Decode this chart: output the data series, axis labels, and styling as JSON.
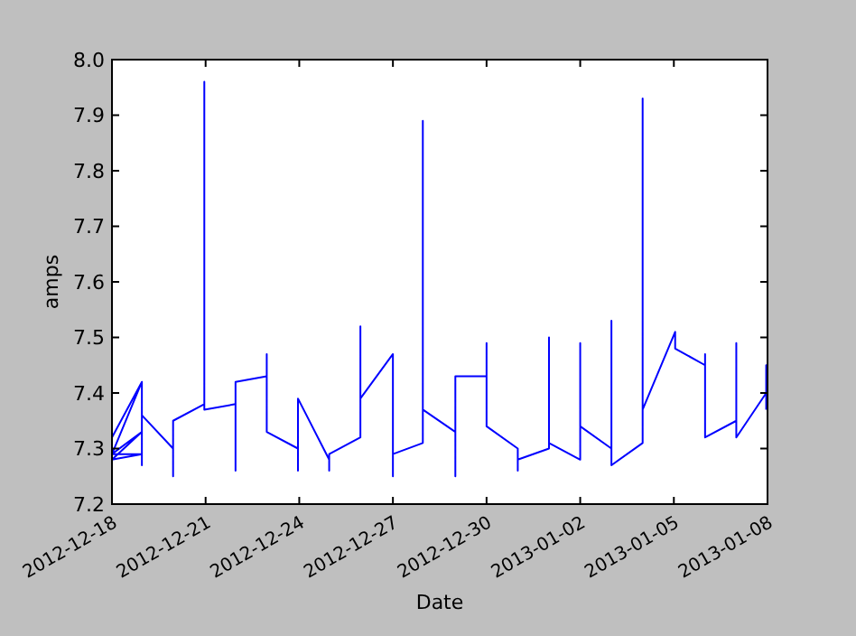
{
  "chart_data": {
    "type": "line",
    "xlabel": "Date",
    "ylabel": "amps",
    "x": [
      "2012-12-18T00:00",
      "2012-12-18T23:00",
      "2012-12-18T00:00",
      "2012-12-18T23:00",
      "2012-12-18T00:00",
      "2012-12-18T23:00",
      "2012-12-18T00:00",
      "2012-12-18T23:00",
      "2012-12-18T23:00",
      "2012-12-18T23:00",
      "2012-12-19T23:00",
      "2012-12-19T23:00",
      "2012-12-19T23:00",
      "2012-12-20T23:00",
      "2012-12-20T23:00",
      "2012-12-20T23:00",
      "2012-12-21T23:00",
      "2012-12-21T23:00",
      "2012-12-21T23:00",
      "2012-12-22T23:00",
      "2012-12-22T23:00",
      "2012-12-22T23:00",
      "2012-12-23T23:00",
      "2012-12-23T23:00",
      "2012-12-23T23:00",
      "2012-12-24T23:00",
      "2012-12-24T23:00",
      "2012-12-24T23:00",
      "2012-12-25T23:00",
      "2012-12-25T23:00",
      "2012-12-25T23:00",
      "2012-12-27T00:00",
      "2012-12-27T00:00",
      "2012-12-27T00:00",
      "2012-12-27T23:00",
      "2012-12-27T23:00",
      "2012-12-27T23:00",
      "2012-12-29T00:00",
      "2012-12-29T00:00",
      "2012-12-29T00:00",
      "2012-12-30T00:00",
      "2012-12-30T00:00",
      "2012-12-30T00:00",
      "2012-12-31T00:00",
      "2012-12-31T00:00",
      "2012-12-31T00:00",
      "2013-01-01T00:00",
      "2013-01-01T00:00",
      "2013-01-01T00:00",
      "2013-01-02T00:00",
      "2013-01-02T00:00",
      "2013-01-02T00:00",
      "2013-01-03T00:00",
      "2013-01-03T00:00",
      "2013-01-03T00:00",
      "2013-01-04T00:00",
      "2013-01-04T00:00",
      "2013-01-04T00:00",
      "2013-01-05T01:00",
      "2013-01-05T01:00",
      "2013-01-06T00:00",
      "2013-01-06T00:00",
      "2013-01-06T00:00",
      "2013-01-07T00:00",
      "2013-01-07T00:00",
      "2013-01-07T00:00",
      "2013-01-07T23:00",
      "2013-01-07T23:00",
      "2013-01-07T23:00"
    ],
    "series": [
      {
        "color": "#0000ff",
        "values": [
          7.32,
          7.42,
          7.29,
          7.33,
          7.28,
          7.29,
          7.29,
          7.42,
          7.27,
          7.36,
          7.3,
          7.25,
          7.35,
          7.38,
          7.96,
          7.37,
          7.38,
          7.26,
          7.42,
          7.43,
          7.47,
          7.33,
          7.3,
          7.26,
          7.39,
          7.28,
          7.26,
          7.29,
          7.32,
          7.52,
          7.39,
          7.47,
          7.25,
          7.29,
          7.31,
          7.89,
          7.37,
          7.33,
          7.25,
          7.43,
          7.43,
          7.49,
          7.34,
          7.3,
          7.26,
          7.28,
          7.3,
          7.5,
          7.31,
          7.28,
          7.49,
          7.34,
          7.3,
          7.53,
          7.27,
          7.31,
          7.93,
          7.37,
          7.51,
          7.48,
          7.45,
          7.47,
          7.32,
          7.35,
          7.49,
          7.32,
          7.4,
          7.45,
          7.37
        ]
      }
    ],
    "xlim": [
      "2012-12-18",
      "2013-01-08"
    ],
    "xticks": [
      {
        "value": "2012-12-18",
        "label": "2012-12-18"
      },
      {
        "value": "2012-12-21",
        "label": "2012-12-21"
      },
      {
        "value": "2012-12-24",
        "label": "2012-12-24"
      },
      {
        "value": "2012-12-27",
        "label": "2012-12-27"
      },
      {
        "value": "2012-12-30",
        "label": "2012-12-30"
      },
      {
        "value": "2013-01-02",
        "label": "2013-01-02"
      },
      {
        "value": "2013-01-05",
        "label": "2013-01-05"
      },
      {
        "value": "2013-01-08",
        "label": "2013-01-08"
      }
    ],
    "ylim": [
      7.2,
      8.0
    ],
    "yticks": [
      {
        "value": 7.2,
        "label": "7.2"
      },
      {
        "value": 7.3,
        "label": "7.3"
      },
      {
        "value": 7.4,
        "label": "7.4"
      },
      {
        "value": 7.5,
        "label": "7.5"
      },
      {
        "value": 7.6,
        "label": "7.6"
      },
      {
        "value": 7.7,
        "label": "7.7"
      },
      {
        "value": 7.8,
        "label": "7.8"
      },
      {
        "value": 7.9,
        "label": "7.9"
      },
      {
        "value": 8.0,
        "label": "8.0"
      }
    ],
    "grid": false,
    "marker": "none",
    "line_style": "solid"
  }
}
